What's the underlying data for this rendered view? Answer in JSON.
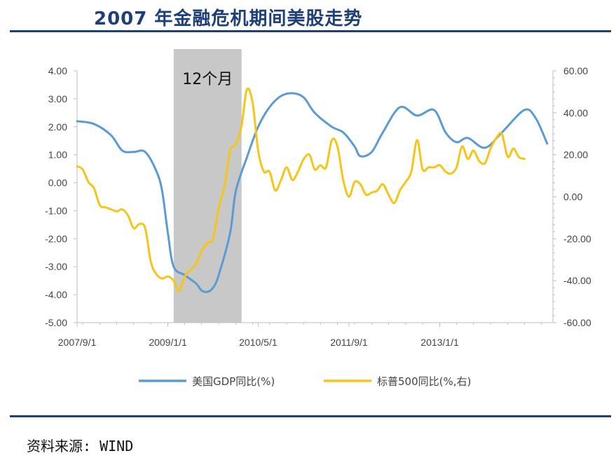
{
  "title": "2007 年金融危机期间美股走势",
  "source": "资料来源: WIND",
  "colors": {
    "gdp": "#5b9bd5",
    "sp500": "#f5c518",
    "shade": "#c8c8c8",
    "rule": "#1f3f78",
    "axis": "#bfbfbf"
  },
  "chart_data": {
    "type": "line",
    "x_ticks": [
      "2007/9/1",
      "2009/1/1",
      "2010/5/1",
      "2011/9/1",
      "2013/1/1"
    ],
    "left_axis": {
      "ylim": [
        -5,
        4
      ],
      "ticks": [
        "4.00",
        "3.00",
        "2.00",
        "1.00",
        "0.00",
        "-1.00",
        "-2.00",
        "-3.00",
        "-4.00",
        "-5.00"
      ]
    },
    "right_axis": {
      "ylim": [
        -60,
        60
      ],
      "ticks": [
        "60.00",
        "40.00",
        "20.00",
        "0.00",
        "-20.00",
        "-40.00",
        "-60.00"
      ]
    },
    "shaded_period": {
      "start": "2009-02",
      "end": "2010-02",
      "label": "12个月"
    },
    "series": [
      {
        "name": "美国GDP同比(%)",
        "axis": "left",
        "points": [
          [
            "2007-09-01",
            2.2
          ],
          [
            "2007-12-01",
            2.1
          ],
          [
            "2008-03-01",
            1.7
          ],
          [
            "2008-05-01",
            1.15
          ],
          [
            "2008-07-01",
            1.1
          ],
          [
            "2008-09-01",
            1.1
          ],
          [
            "2008-11-01",
            0.4
          ],
          [
            "2008-12-01",
            -0.3
          ],
          [
            "2009-01-01",
            -1.8
          ],
          [
            "2009-02-01",
            -3.0
          ],
          [
            "2009-04-01",
            -3.3
          ],
          [
            "2009-06-01",
            -3.6
          ],
          [
            "2009-07-01",
            -3.85
          ],
          [
            "2009-08-01",
            -3.9
          ],
          [
            "2009-09-01",
            -3.75
          ],
          [
            "2009-10-01",
            -3.3
          ],
          [
            "2009-12-01",
            -1.8
          ],
          [
            "2010-01-01",
            -0.3
          ],
          [
            "2010-03-01",
            0.9
          ],
          [
            "2010-05-01",
            2.0
          ],
          [
            "2010-07-01",
            2.7
          ],
          [
            "2010-09-01",
            3.1
          ],
          [
            "2010-11-01",
            3.2
          ],
          [
            "2011-01-01",
            3.05
          ],
          [
            "2011-03-01",
            2.5
          ],
          [
            "2011-06-01",
            2.0
          ],
          [
            "2011-08-01",
            1.8
          ],
          [
            "2011-10-01",
            1.3
          ],
          [
            "2011-11-01",
            0.95
          ],
          [
            "2012-01-01",
            1.1
          ],
          [
            "2012-03-01",
            1.8
          ],
          [
            "2012-06-01",
            2.7
          ],
          [
            "2012-09-01",
            2.4
          ],
          [
            "2012-12-01",
            2.6
          ],
          [
            "2013-02-01",
            1.8
          ],
          [
            "2013-04-01",
            1.45
          ],
          [
            "2013-06-01",
            1.6
          ],
          [
            "2013-09-01",
            1.25
          ],
          [
            "2013-12-01",
            1.8
          ],
          [
            "2014-04-01",
            2.6
          ],
          [
            "2014-06-01",
            2.3
          ],
          [
            "2014-08-01",
            1.4
          ]
        ]
      },
      {
        "name": "标普500同比(%,右)",
        "axis": "right",
        "points": [
          [
            "2007-09-01",
            14.5
          ],
          [
            "2007-10-01",
            13
          ],
          [
            "2007-11-01",
            7
          ],
          [
            "2007-12-01",
            4
          ],
          [
            "2008-01-01",
            -4
          ],
          [
            "2008-02-01",
            -5
          ],
          [
            "2008-03-01",
            -6
          ],
          [
            "2008-04-01",
            -7
          ],
          [
            "2008-05-01",
            -6
          ],
          [
            "2008-06-01",
            -9
          ],
          [
            "2008-07-01",
            -15
          ],
          [
            "2008-08-01",
            -13
          ],
          [
            "2008-09-01",
            -15
          ],
          [
            "2008-10-01",
            -31
          ],
          [
            "2008-11-01",
            -37
          ],
          [
            "2008-12-01",
            -39
          ],
          [
            "2009-01-01",
            -38
          ],
          [
            "2009-02-01",
            -40
          ],
          [
            "2009-03-01",
            -45
          ],
          [
            "2009-04-01",
            -38
          ],
          [
            "2009-05-01",
            -35
          ],
          [
            "2009-06-01",
            -32
          ],
          [
            "2009-07-01",
            -26
          ],
          [
            "2009-08-01",
            -22
          ],
          [
            "2009-09-01",
            -20
          ],
          [
            "2009-10-01",
            -5
          ],
          [
            "2009-11-01",
            5
          ],
          [
            "2009-12-01",
            22
          ],
          [
            "2010-01-01",
            25
          ],
          [
            "2010-02-01",
            34
          ],
          [
            "2010-03-01",
            51
          ],
          [
            "2010-04-01",
            45
          ],
          [
            "2010-05-01",
            22
          ],
          [
            "2010-06-01",
            12
          ],
          [
            "2010-07-01",
            12
          ],
          [
            "2010-08-01",
            3
          ],
          [
            "2010-09-01",
            8
          ],
          [
            "2010-10-01",
            14
          ],
          [
            "2010-11-01",
            8
          ],
          [
            "2010-12-01",
            12
          ],
          [
            "2011-01-01",
            18
          ],
          [
            "2011-02-01",
            20
          ],
          [
            "2011-03-01",
            13
          ],
          [
            "2011-04-01",
            15
          ],
          [
            "2011-05-01",
            14
          ],
          [
            "2011-06-01",
            27
          ],
          [
            "2011-07-01",
            24
          ],
          [
            "2011-08-01",
            8
          ],
          [
            "2011-09-01",
            0
          ],
          [
            "2011-10-01",
            7
          ],
          [
            "2011-11-01",
            6
          ],
          [
            "2011-12-01",
            1
          ],
          [
            "2012-01-01",
            2
          ],
          [
            "2012-02-01",
            3
          ],
          [
            "2012-03-01",
            6
          ],
          [
            "2012-04-01",
            1
          ],
          [
            "2012-05-01",
            -3
          ],
          [
            "2012-06-01",
            3
          ],
          [
            "2012-07-01",
            7
          ],
          [
            "2012-08-01",
            12
          ],
          [
            "2012-09-01",
            27
          ],
          [
            "2012-10-01",
            13
          ],
          [
            "2012-11-01",
            14
          ],
          [
            "2012-12-01",
            14
          ],
          [
            "2013-01-01",
            15
          ],
          [
            "2013-02-01",
            12
          ],
          [
            "2013-03-01",
            11
          ],
          [
            "2013-04-01",
            14
          ],
          [
            "2013-05-01",
            24
          ],
          [
            "2013-06-01",
            18
          ],
          [
            "2013-07-01",
            22
          ],
          [
            "2013-08-01",
            17
          ],
          [
            "2013-09-01",
            16
          ],
          [
            "2013-10-01",
            23
          ],
          [
            "2013-11-01",
            28
          ],
          [
            "2013-12-01",
            30
          ],
          [
            "2014-01-01",
            19
          ],
          [
            "2014-02-01",
            23
          ],
          [
            "2014-03-01",
            19
          ],
          [
            "2014-04-01",
            18
          ]
        ]
      }
    ]
  }
}
